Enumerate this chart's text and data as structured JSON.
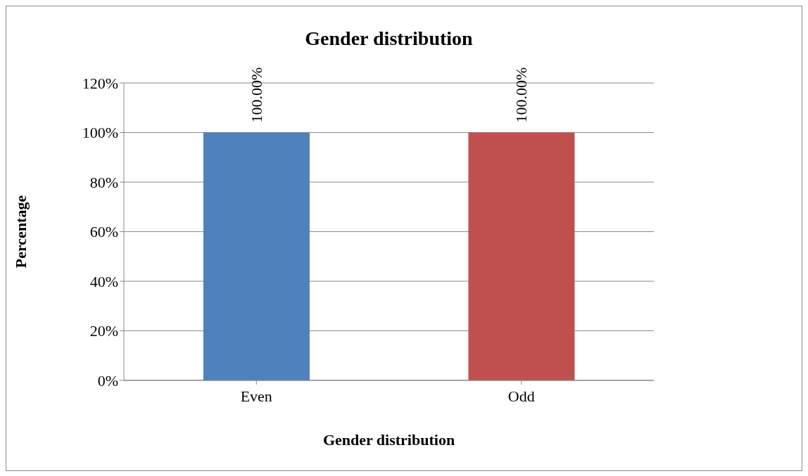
{
  "chart_data": {
    "type": "bar",
    "title": "Gender distribution",
    "xlabel": "Gender distribution",
    "ylabel": "Percentage",
    "categories": [
      "Even",
      "Odd"
    ],
    "values": [
      100,
      100
    ],
    "colors": [
      "#4f81bd",
      "#c0504d"
    ],
    "value_labels": [
      "100.00%",
      "100.00%"
    ],
    "ylim": [
      0,
      120
    ],
    "yticks": [
      {
        "value": 0,
        "label": "0%"
      },
      {
        "value": 20,
        "label": "20%"
      },
      {
        "value": 40,
        "label": "40%"
      },
      {
        "value": 60,
        "label": "60%"
      },
      {
        "value": 80,
        "label": "80%"
      },
      {
        "value": 100,
        "label": "100%"
      },
      {
        "value": 120,
        "label": "120%"
      }
    ],
    "grid": "y",
    "legend": false
  }
}
